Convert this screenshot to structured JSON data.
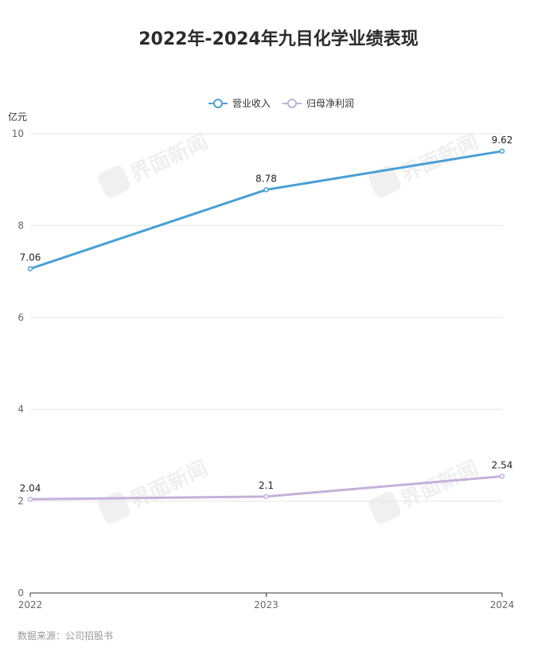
{
  "chart_data": {
    "type": "line",
    "title": "2022年-2024年九目化学业绩表现",
    "unit": "亿元",
    "categories": [
      "2022",
      "2023",
      "2024"
    ],
    "ylim": [
      0,
      10
    ],
    "yticks": [
      "0",
      "2",
      "4",
      "6",
      "8",
      "10"
    ],
    "ytick_values": [
      0,
      2,
      4,
      6,
      8,
      10
    ],
    "grid": true,
    "legend_position": "top-center",
    "series": [
      {
        "name": "营业收入",
        "values": [
          7.06,
          8.78,
          9.62
        ],
        "labels": [
          "7.06",
          "8.78",
          "9.62"
        ],
        "color": "#4a9fd4"
      },
      {
        "name": "归母净利润",
        "values": [
          2.04,
          2.1,
          2.54
        ],
        "labels": [
          "2.04",
          "2.1",
          "2.54"
        ],
        "color": "#c3b1da"
      }
    ],
    "source": "数据来源：公司招股书",
    "watermark": "界面新闻"
  }
}
